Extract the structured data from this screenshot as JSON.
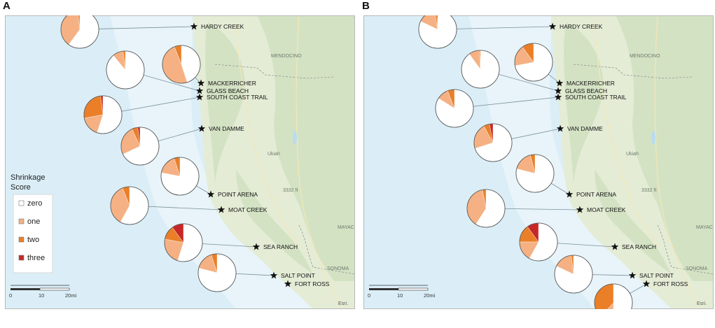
{
  "panels": [
    {
      "letter": "A",
      "show_legend": true,
      "sites": [
        {
          "name": "HARDY CREEK",
          "values": {
            "zero": 0.6,
            "one": 0.38,
            "two": 0.02,
            "three": 0.0
          }
        },
        {
          "name": "MACKERRICHER",
          "values": {
            "zero": 0.45,
            "one": 0.49,
            "two": 0.06,
            "three": 0.0
          }
        },
        {
          "name": "GLASS BEACH",
          "values": {
            "zero": 0.89,
            "one": 0.09,
            "two": 0.02,
            "three": 0.0
          }
        },
        {
          "name": "SOUTH COAST TRAIL",
          "values": {
            "zero": 0.55,
            "one": 0.17,
            "two": 0.26,
            "three": 0.02
          }
        },
        {
          "name": "VAN DAMME",
          "values": {
            "zero": 0.68,
            "one": 0.25,
            "two": 0.05,
            "three": 0.02
          }
        },
        {
          "name": "POINT ARENA",
          "values": {
            "zero": 0.78,
            "one": 0.17,
            "two": 0.05,
            "three": 0.0
          }
        },
        {
          "name": "MOAT CREEK",
          "values": {
            "zero": 0.58,
            "one": 0.36,
            "two": 0.06,
            "three": 0.0
          }
        },
        {
          "name": "SEA RANCH",
          "values": {
            "zero": 0.55,
            "one": 0.23,
            "two": 0.12,
            "three": 0.1
          }
        },
        {
          "name": "SALT POINT",
          "values": {
            "zero": 0.79,
            "one": 0.16,
            "two": 0.05,
            "three": 0.0
          }
        },
        {
          "name": "FORT ROSS",
          "values": null
        }
      ]
    },
    {
      "letter": "B",
      "show_legend": false,
      "sites": [
        {
          "name": "HARDY CREEK",
          "values": {
            "zero": 0.82,
            "one": 0.15,
            "two": 0.02,
            "three": 0.01
          }
        },
        {
          "name": "MACKERRICHER",
          "values": {
            "zero": 0.72,
            "one": 0.18,
            "two": 0.1,
            "three": 0.0
          }
        },
        {
          "name": "GLASS BEACH",
          "values": {
            "zero": 0.9,
            "one": 0.09,
            "two": 0.01,
            "three": 0.0
          }
        },
        {
          "name": "SOUTH COAST TRAIL",
          "values": {
            "zero": 0.84,
            "one": 0.1,
            "two": 0.06,
            "three": 0.0
          }
        },
        {
          "name": "VAN DAMME",
          "values": {
            "zero": 0.7,
            "one": 0.22,
            "two": 0.05,
            "three": 0.03
          }
        },
        {
          "name": "POINT ARENA",
          "values": {
            "zero": 0.79,
            "one": 0.17,
            "two": 0.04,
            "three": 0.0
          }
        },
        {
          "name": "MOAT CREEK",
          "values": {
            "zero": 0.59,
            "one": 0.38,
            "two": 0.03,
            "three": 0.0
          }
        },
        {
          "name": "SEA RANCH",
          "values": {
            "zero": 0.58,
            "one": 0.17,
            "two": 0.15,
            "three": 0.1
          }
        },
        {
          "name": "SALT POINT",
          "values": {
            "zero": 0.82,
            "one": 0.16,
            "two": 0.02,
            "three": 0.0
          }
        },
        {
          "name": "FORT ROSS",
          "values": {
            "zero": 0.5,
            "one": 0.12,
            "two": 0.38,
            "three": 0.0
          }
        }
      ]
    }
  ],
  "legend": {
    "title_line1": "Shrinkage",
    "title_line2": "Score",
    "entries": [
      {
        "key": "zero",
        "label": "zero",
        "color": "#ffffff"
      },
      {
        "key": "one",
        "label": "one",
        "color": "#f5b183"
      },
      {
        "key": "two",
        "label": "two",
        "color": "#ea7f28"
      },
      {
        "key": "three",
        "label": "three",
        "color": "#c62828"
      }
    ]
  },
  "scale_bar": {
    "labels": [
      "0",
      "10",
      "20mi"
    ]
  },
  "attribution": "Esri.",
  "map_labels": [
    "MENDOCINO",
    "Ukiah",
    "3332 ft",
    "MAYAC",
    "SONOMA"
  ],
  "colors": {
    "ocean": "#dbeef7",
    "land": "#e4ecd6",
    "border": "#b8b8b8"
  }
}
